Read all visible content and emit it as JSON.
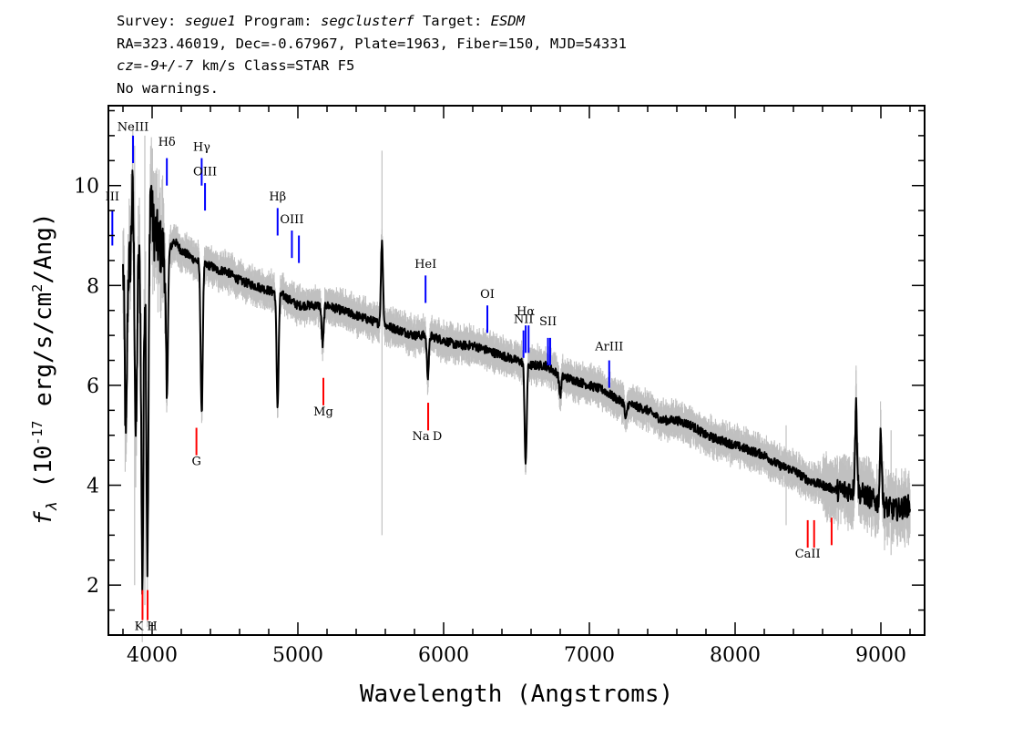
{
  "header": {
    "line1": [
      {
        "text": "Survey: ",
        "italic": false
      },
      {
        "text": "segue1",
        "italic": true
      },
      {
        "text": " Program: ",
        "italic": false
      },
      {
        "text": "segclusterf",
        "italic": true
      },
      {
        "text": " Target: ",
        "italic": false
      },
      {
        "text": "ESDM",
        "italic": true
      }
    ],
    "line2": "RA=323.46019, Dec=-0.67967, Plate=1963, Fiber=150, MJD=54331",
    "line3": [
      {
        "text": "cz=-9+/-7",
        "italic": true
      },
      {
        "text": " km/s Class=STAR F5",
        "italic": false
      }
    ],
    "line4": "No warnings."
  },
  "colors": {
    "spectrum": "#000000",
    "noise": "#c0c0c0",
    "emission_marker": "#0000ff",
    "absorption_marker": "#ff0000",
    "axes": "#000000"
  },
  "chart_data": {
    "type": "line",
    "title": "",
    "xlabel": "Wavelength (Angstroms)",
    "ylabel": "f_λ (10^-17 erg/s/cm^2/Ang)",
    "xlim": [
      3700,
      9300
    ],
    "ylim": [
      1.0,
      11.6
    ],
    "x_ticks": [
      4000,
      5000,
      6000,
      7000,
      8000,
      9000
    ],
    "y_ticks": [
      2,
      4,
      6,
      8,
      10
    ],
    "grid": false,
    "series": [
      {
        "style": "black-line",
        "x": [
          3800,
          3850,
          3900,
          3950,
          4000,
          4050,
          4100,
          4150,
          4200,
          4250,
          4300,
          4350,
          4400,
          4450,
          4500,
          4600,
          4700,
          4800,
          4900,
          5000,
          5100,
          5200,
          5300,
          5400,
          5500,
          5600,
          5700,
          5800,
          5900,
          6000,
          6100,
          6200,
          6300,
          6400,
          6500,
          6600,
          6700,
          6800,
          6900,
          7000,
          7100,
          7200,
          7300,
          7400,
          7500,
          7600,
          7700,
          7800,
          7900,
          8000,
          8100,
          8200,
          8300,
          8400,
          8500,
          8600,
          8700,
          8800,
          8900,
          9000,
          9100,
          9200
        ],
        "y": [
          8.3,
          8.4,
          8.5,
          8.4,
          9.2,
          8.8,
          8.6,
          8.9,
          8.7,
          8.6,
          8.5,
          8.4,
          8.4,
          8.3,
          8.3,
          8.1,
          8.0,
          7.9,
          7.8,
          7.6,
          7.6,
          7.6,
          7.5,
          7.4,
          7.3,
          7.2,
          7.1,
          7.0,
          7.0,
          6.9,
          6.8,
          6.8,
          6.7,
          6.6,
          6.5,
          6.4,
          6.4,
          6.2,
          6.1,
          6.0,
          5.9,
          5.7,
          5.6,
          5.5,
          5.3,
          5.3,
          5.2,
          5.0,
          4.9,
          4.8,
          4.7,
          4.6,
          4.4,
          4.3,
          4.1,
          4.0,
          3.9,
          3.9,
          3.8,
          3.6,
          3.5,
          3.6
        ]
      }
    ],
    "absorption_features": [
      {
        "x": 3933,
        "y": 2.1
      },
      {
        "x": 3968,
        "y": 2.5
      },
      {
        "x": 3820,
        "y": 4.8
      },
      {
        "x": 3889,
        "y": 4.9
      },
      {
        "x": 4101,
        "y": 5.7
      },
      {
        "x": 4340,
        "y": 5.4
      },
      {
        "x": 4861,
        "y": 5.6
      },
      {
        "x": 5170,
        "y": 6.8
      },
      {
        "x": 5892,
        "y": 6.2
      },
      {
        "x": 6563,
        "y": 4.4
      },
      {
        "x": 6800,
        "y": 5.8
      },
      {
        "x": 7250,
        "y": 5.3
      }
    ],
    "emission_features": [
      {
        "x": 5577,
        "y": 8.9
      },
      {
        "x": 8830,
        "y": 5.6
      },
      {
        "x": 9000,
        "y": 5.0
      },
      {
        "x": 3990,
        "y": 10.0
      },
      {
        "x": 3865,
        "y": 9.8
      }
    ],
    "emission_lines": [
      {
        "label": "III",
        "x": 3727,
        "y1": 8.8,
        "y2": 9.5,
        "ly": 9.7
      },
      {
        "label": "NeIII",
        "x": 3869,
        "y1": 10.45,
        "y2": 11.0,
        "ly": 11.1
      },
      {
        "label": "Hδ",
        "x": 4101,
        "y1": 10.0,
        "y2": 10.55,
        "ly": 10.8
      },
      {
        "label": "Hγ",
        "x": 4340,
        "y1": 10.0,
        "y2": 10.55,
        "ly": 10.7
      },
      {
        "label": "OIII",
        "x": 4363,
        "y1": 9.5,
        "y2": 10.05,
        "ly": 10.2
      },
      {
        "label": "Hβ",
        "x": 4861,
        "y1": 9.0,
        "y2": 9.55,
        "ly": 9.7
      },
      {
        "label": "OIII",
        "x": 4959,
        "y1": 8.55,
        "y2": 9.1,
        "ly": 9.25
      },
      {
        "label": "OIII",
        "x": 5007,
        "y1": 8.45,
        "y2": 9.0,
        "ly": 9.25
      },
      {
        "label": "HeI",
        "x": 5876,
        "y1": 7.65,
        "y2": 8.2,
        "ly": 8.35
      },
      {
        "label": "OI",
        "x": 6300,
        "y1": 7.05,
        "y2": 7.6,
        "ly": 7.75
      },
      {
        "label": "NII",
        "x": 6548,
        "y1": 6.55,
        "y2": 7.1,
        "ly": 7.25
      },
      {
        "label": "Hα",
        "x": 6563,
        "y1": 6.65,
        "y2": 7.2,
        "ly": 7.4
      },
      {
        "label": "NII",
        "x": 6583,
        "y1": 6.65,
        "y2": 7.2,
        "ly": 7.25
      },
      {
        "label": "SII",
        "x": 6716,
        "y1": 6.4,
        "y2": 6.95,
        "ly": 7.2
      },
      {
        "label": "SII",
        "x": 6731,
        "y1": 6.4,
        "y2": 6.95,
        "ly": 7.2
      },
      {
        "label": "ArIII",
        "x": 7136,
        "y1": 5.95,
        "y2": 6.5,
        "ly": 6.7
      }
    ],
    "absorption_lines": [
      {
        "label": "K",
        "x": 3934,
        "y1": 1.3,
        "y2": 1.9,
        "ly": 1.1
      },
      {
        "label": "H",
        "x": 3969,
        "y1": 1.3,
        "y2": 1.9,
        "ly": 1.1
      },
      {
        "label": "G",
        "x": 4304,
        "y1": 4.6,
        "y2": 5.15,
        "ly": 4.4
      },
      {
        "label": "Mg",
        "x": 5175,
        "y1": 5.6,
        "y2": 6.15,
        "ly": 5.4
      },
      {
        "label": "Na",
        "x": 5894,
        "y1": 5.1,
        "y2": 5.65,
        "ly": 4.9
      },
      {
        "label": "D",
        "x": 5894,
        "y1": 5.1,
        "y2": 5.65,
        "ly": 4.9
      },
      {
        "label": "CaII",
        "x": 8498,
        "y1": 2.75,
        "y2": 3.3,
        "ly": 2.55
      },
      {
        "label": "CaII",
        "x": 8542,
        "y1": 2.75,
        "y2": 3.3,
        "ly": 2.55
      },
      {
        "label": "CaII",
        "x": 8662,
        "y1": 2.8,
        "y2": 3.35,
        "ly": 2.55
      }
    ]
  }
}
